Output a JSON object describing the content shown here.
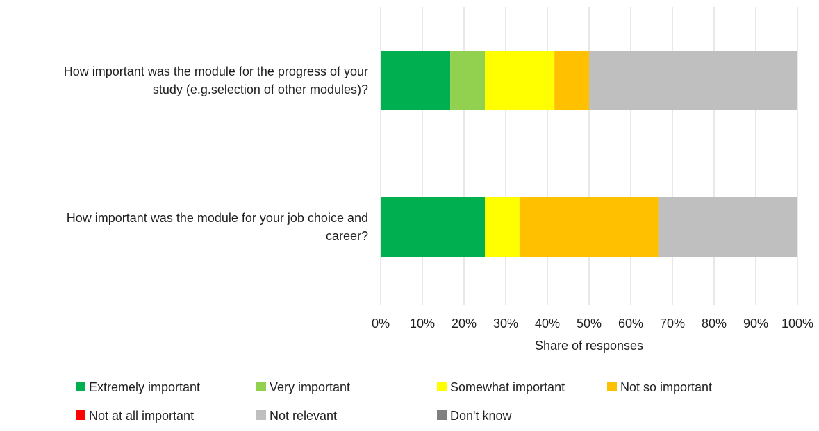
{
  "chart_data": {
    "type": "bar",
    "orientation": "horizontal",
    "stacked": true,
    "categories": [
      "How important was the module for the progress of your study (e.g.selection of other modules)?",
      "How important was the module for your job choice and career?"
    ],
    "category_lines": [
      [
        "How important was the module for the progress of your",
        "study (e.g.selection of other modules)?"
      ],
      [
        "How important was the module for your job choice and",
        "career?"
      ]
    ],
    "series": [
      {
        "name": "Extremely important",
        "color": "#00b050",
        "values": [
          16.7,
          25.0
        ]
      },
      {
        "name": "Very important",
        "color": "#92d050",
        "values": [
          8.3,
          0
        ]
      },
      {
        "name": "Somewhat important",
        "color": "#ffff00",
        "values": [
          16.7,
          8.3
        ]
      },
      {
        "name": "Not so important",
        "color": "#ffc000",
        "values": [
          8.3,
          33.3
        ]
      },
      {
        "name": "Not at all important",
        "color": "#ff0000",
        "values": [
          0,
          0
        ]
      },
      {
        "name": "Not relevant",
        "color": "#bfbfbf",
        "values": [
          50.0,
          33.4
        ]
      },
      {
        "name": "Don't know",
        "color": "#808080",
        "values": [
          0,
          0
        ]
      }
    ],
    "xlabel": "Share of responses",
    "xlim": [
      0,
      100
    ],
    "xticks": [
      "0%",
      "10%",
      "20%",
      "30%",
      "40%",
      "50%",
      "60%",
      "70%",
      "80%",
      "90%",
      "100%"
    ],
    "grid": true,
    "legend_position": "bottom"
  }
}
